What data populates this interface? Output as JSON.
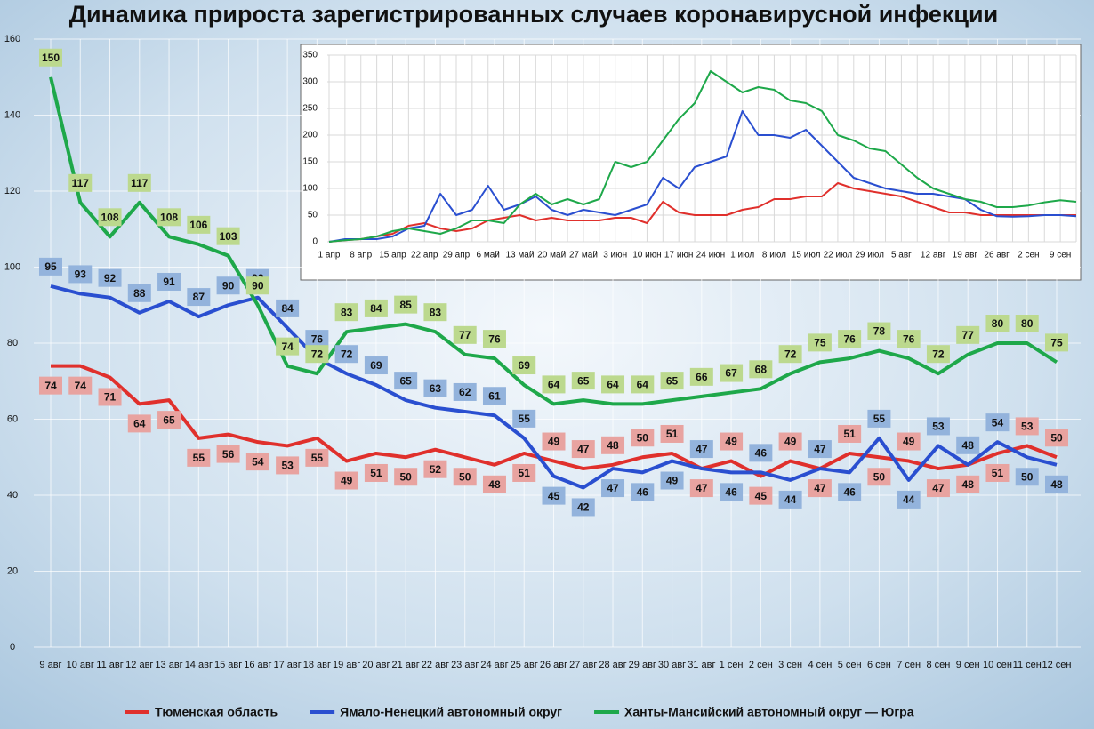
{
  "chart_data": [
    {
      "type": "line",
      "title": "Динамика прироста зарегистрированных случаев коронавирусной инфекции",
      "categories": [
        "9 авг",
        "10 авг",
        "11 авг",
        "12 авг",
        "13 авг",
        "14 авг",
        "15 авг",
        "16 авг",
        "17 авг",
        "18 авг",
        "19 авг",
        "20 авг",
        "21 авг",
        "22 авг",
        "23 авг",
        "24 авг",
        "25 авг",
        "26 авг",
        "27 авг",
        "28 авг",
        "29 авг",
        "30 авг",
        "31 авг",
        "1 сен",
        "2 сен",
        "3 сен",
        "4 сен",
        "5 сен",
        "6 сен",
        "7 сен",
        "8 сен",
        "9 сен",
        "10 сен",
        "11 сен",
        "12 сен"
      ],
      "series": [
        {
          "name": "Тюменская область",
          "color": "#e0302c",
          "label_color": "#e8a3a0",
          "values": [
            74,
            74,
            71,
            64,
            65,
            55,
            56,
            54,
            53,
            55,
            49,
            51,
            50,
            52,
            50,
            48,
            51,
            49,
            47,
            48,
            50,
            51,
            47,
            49,
            45,
            49,
            47,
            51,
            50,
            49,
            47,
            48,
            51,
            53,
            50
          ]
        },
        {
          "name": "Ямало-Ненецкий автономный округ",
          "color": "#2a4fd0",
          "label_color": "#93b3dc",
          "values": [
            95,
            93,
            92,
            88,
            91,
            87,
            90,
            92,
            84,
            76,
            72,
            69,
            65,
            63,
            62,
            61,
            55,
            45,
            42,
            47,
            46,
            49,
            47,
            46,
            46,
            44,
            47,
            46,
            55,
            44,
            53,
            48,
            54,
            50,
            48
          ]
        },
        {
          "name": "Ханты-Мансийский автономный округ — Югра",
          "color": "#1ea84a",
          "label_color": "#bcd98e",
          "values": [
            150,
            117,
            108,
            117,
            108,
            106,
            103,
            90,
            74,
            72,
            83,
            84,
            85,
            83,
            77,
            76,
            69,
            64,
            65,
            64,
            64,
            65,
            66,
            67,
            68,
            72,
            75,
            76,
            78,
            76,
            72,
            77,
            80,
            80,
            75
          ]
        }
      ],
      "ylim": [
        0,
        160
      ],
      "yticks": [
        0,
        20,
        40,
        60,
        80,
        100,
        120,
        140,
        160
      ],
      "grid": true,
      "legend": "bottom"
    },
    {
      "type": "line",
      "categories": [
        "1 апр",
        null,
        "8 апр",
        null,
        "15 апр",
        null,
        "22 апр",
        null,
        "29 апр",
        null,
        "6 май",
        null,
        "13 май",
        null,
        "20 май",
        null,
        "27 май",
        null,
        "3 июн",
        null,
        "10 июн",
        null,
        "17 июн",
        null,
        "24 июн",
        null,
        "1 июл",
        null,
        "8 июл",
        null,
        "15 июл",
        null,
        "22 июл",
        null,
        "29 июл",
        null,
        "5 авг",
        null,
        "12 авг",
        null,
        "19 авг",
        null,
        "26 авг",
        null,
        "2 сен",
        null,
        "9 сен",
        null
      ],
      "series": [
        {
          "color": "#e0302c",
          "values": [
            0,
            3,
            5,
            10,
            15,
            30,
            35,
            25,
            20,
            25,
            40,
            45,
            50,
            40,
            45,
            40,
            40,
            40,
            45,
            45,
            35,
            75,
            55,
            50,
            50,
            50,
            60,
            65,
            80,
            80,
            85,
            85,
            110,
            100,
            95,
            90,
            85,
            75,
            65,
            55,
            55,
            50,
            50,
            50,
            50,
            50,
            50,
            50
          ]
        },
        {
          "color": "#2a4fd0",
          "values": [
            0,
            5,
            5,
            5,
            10,
            25,
            30,
            90,
            50,
            60,
            105,
            60,
            70,
            85,
            60,
            50,
            60,
            55,
            50,
            60,
            70,
            120,
            100,
            140,
            150,
            160,
            245,
            200,
            200,
            195,
            210,
            180,
            150,
            120,
            110,
            100,
            95,
            90,
            90,
            85,
            80,
            60,
            48,
            47,
            48,
            50,
            50,
            48
          ]
        },
        {
          "color": "#1ea84a",
          "values": [
            0,
            3,
            5,
            10,
            20,
            25,
            20,
            15,
            25,
            40,
            40,
            35,
            70,
            90,
            70,
            80,
            70,
            80,
            150,
            140,
            150,
            190,
            230,
            260,
            320,
            300,
            280,
            290,
            285,
            265,
            260,
            245,
            200,
            190,
            175,
            170,
            145,
            120,
            100,
            90,
            80,
            75,
            65,
            65,
            68,
            74,
            78,
            75
          ]
        }
      ],
      "ylim": [
        0,
        350
      ],
      "yticks": [
        0,
        50,
        100,
        150,
        200,
        250,
        300,
        350
      ],
      "grid": true
    }
  ]
}
